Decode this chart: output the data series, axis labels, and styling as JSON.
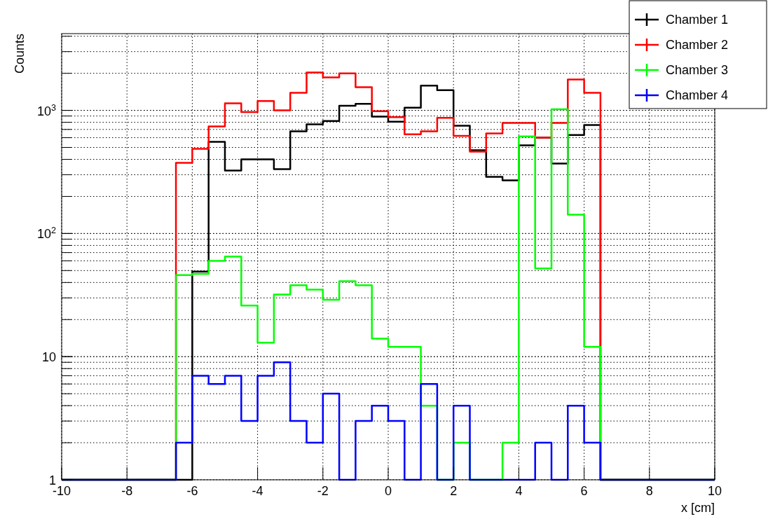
{
  "chart_data": {
    "type": "histogram",
    "xlabel": "x [cm]",
    "ylabel": "Counts",
    "bins": [
      -10,
      -9.5,
      -9,
      -8.5,
      -8,
      -7.5,
      -7,
      -6.5,
      -6,
      -5.5,
      -5,
      -4.5,
      -4,
      -3.5,
      -3,
      -2.5,
      -2,
      -1.5,
      -1,
      -0.5,
      0,
      0.5,
      1,
      1.5,
      2,
      2.5,
      3,
      3.5,
      4,
      4.5,
      5,
      5.5,
      6,
      6.5,
      7,
      7.5,
      8,
      8.5,
      9,
      9.5,
      10
    ],
    "series": [
      {
        "name": "Chamber 1",
        "color": "#000000",
        "values": [
          1,
          1,
          1,
          1,
          1,
          1,
          1,
          1,
          49,
          555,
          325,
          400,
          400,
          333,
          675,
          770,
          820,
          1090,
          1130,
          890,
          810,
          1050,
          1590,
          1460,
          750,
          475,
          288,
          270,
          520,
          600,
          370,
          630,
          760,
          1,
          1,
          1,
          1,
          1,
          1,
          1
        ]
      },
      {
        "name": "Chamber 2",
        "color": "#ff0000",
        "values": [
          1,
          1,
          1,
          1,
          1,
          1,
          1,
          375,
          487,
          740,
          1140,
          970,
          1190,
          1000,
          1390,
          2030,
          1850,
          2000,
          1540,
          985,
          880,
          640,
          675,
          870,
          620,
          462,
          650,
          790,
          790,
          600,
          790,
          1780,
          1390,
          1,
          1,
          1,
          1,
          1,
          1,
          1
        ]
      },
      {
        "name": "Chamber 3",
        "color": "#00ff00",
        "values": [
          1,
          1,
          1,
          1,
          1,
          1,
          1,
          46,
          47,
          60,
          65,
          26,
          13,
          32,
          38,
          35,
          29,
          41,
          38,
          14,
          12,
          12,
          4,
          1,
          2,
          1,
          1,
          2,
          615,
          52,
          1020,
          142,
          12,
          1,
          1,
          1,
          1,
          1,
          1,
          1
        ]
      },
      {
        "name": "Chamber 4",
        "color": "#0000ff",
        "values": [
          1,
          1,
          1,
          1,
          1,
          1,
          1,
          2,
          7,
          6,
          7,
          3,
          7,
          9,
          3,
          2,
          5,
          1,
          3,
          4,
          3,
          1,
          6,
          1,
          4,
          1,
          1,
          1,
          1,
          2,
          1,
          4,
          2,
          1,
          1,
          1,
          1,
          1,
          1,
          1
        ]
      }
    ],
    "xlim": [
      -10,
      10
    ],
    "xticks": [
      -10,
      -8,
      -6,
      -4,
      -2,
      0,
      2,
      4,
      6,
      8,
      10
    ],
    "ylim": [
      1,
      4200
    ],
    "yticks": [
      1,
      10,
      {
        "value": 100,
        "label": "10$^{2}$"
      },
      {
        "value": 1000,
        "label": "10$^{3}$"
      }
    ],
    "log": true,
    "grid": true,
    "legend": "top right"
  }
}
